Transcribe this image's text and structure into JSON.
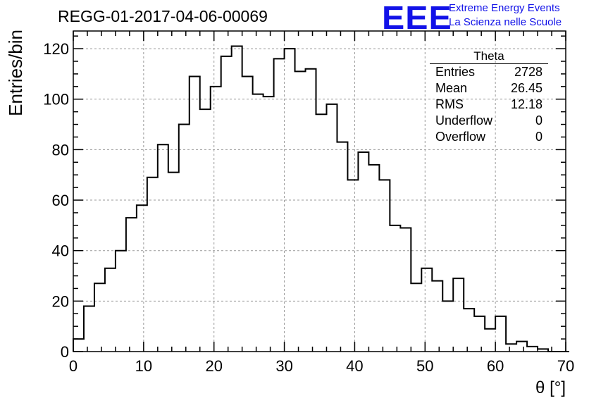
{
  "header": {
    "title": "REGG-01-2017-04-06-00069",
    "logo_mark": "EEE",
    "logo_line1": "Extreme Energy Events",
    "logo_line2": "La Scienza nelle Scuole",
    "logo_color": "#1212e8"
  },
  "stats_box": {
    "title": "Theta",
    "rows": [
      {
        "label": "Entries",
        "value": "2728"
      },
      {
        "label": "Mean",
        "value": "26.45"
      },
      {
        "label": "RMS",
        "value": "12.18"
      },
      {
        "label": "Underflow",
        "value": "0"
      },
      {
        "label": "Overflow",
        "value": "0"
      }
    ]
  },
  "chart_data": {
    "type": "bar",
    "style": "step-histogram",
    "xlabel": "θ [°]",
    "ylabel": "Entries/bin",
    "xlim": [
      0,
      70
    ],
    "ylim": [
      0,
      127
    ],
    "xticks": [
      0,
      10,
      20,
      30,
      40,
      50,
      60,
      70
    ],
    "yticks": [
      0,
      20,
      40,
      60,
      80,
      100,
      120
    ],
    "grid": true,
    "bin_width": 1.5,
    "bin_edges_start": 0,
    "values": [
      5,
      18,
      27,
      33,
      40,
      53,
      58,
      69,
      82,
      71,
      90,
      109,
      96,
      105,
      117,
      121,
      109,
      102,
      101,
      116,
      120,
      111,
      112,
      94,
      98,
      83,
      68,
      79,
      74,
      68,
      50,
      49,
      27,
      33,
      28,
      20,
      29,
      17,
      14,
      9,
      14,
      3,
      4,
      2,
      1,
      0,
      0
    ]
  }
}
